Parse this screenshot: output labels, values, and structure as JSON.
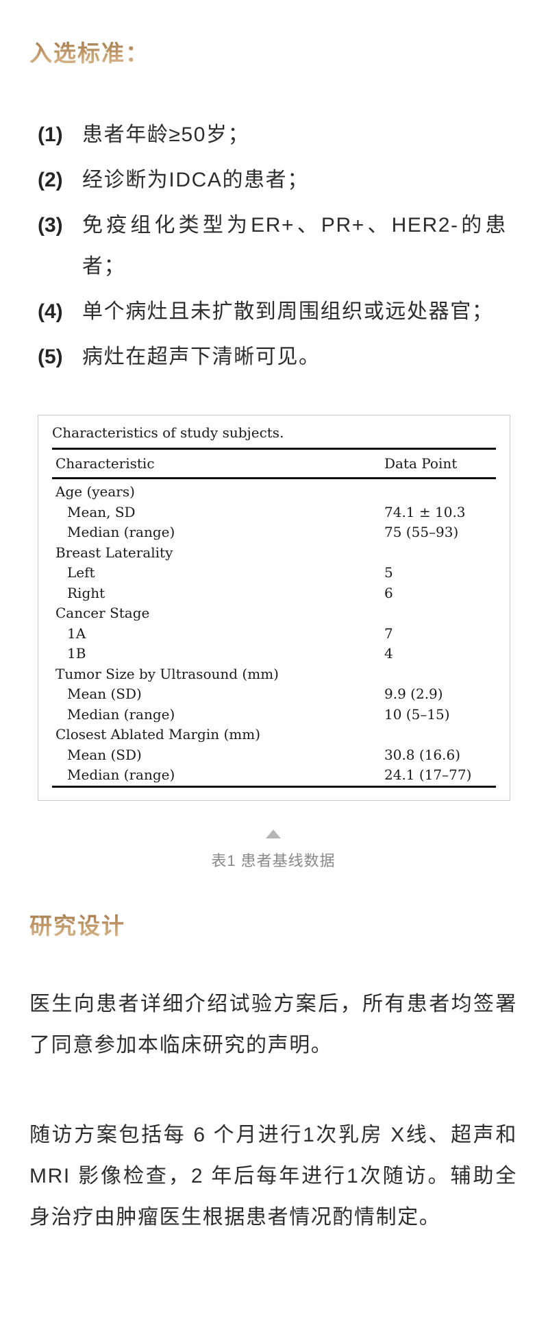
{
  "sections": {
    "inclusion_title": "入选标准：",
    "design_title": "研究设计"
  },
  "criteria": [
    {
      "num": "(1)",
      "text": "患者年龄≥50岁；"
    },
    {
      "num": "(2)",
      "text": "经诊断为IDCA的患者；"
    },
    {
      "num": "(3)",
      "text": "免疫组化类型为ER+、PR+、HER2-的患者；"
    },
    {
      "num": "(4)",
      "text": "单个病灶且未扩散到周围组织或远处器官；"
    },
    {
      "num": "(5)",
      "text": "病灶在超声下清晰可见。"
    }
  ],
  "table": {
    "title": "Characteristics of study subjects.",
    "headers": [
      "Characteristic",
      "Data Point"
    ],
    "rows": [
      {
        "label": "Age (years)",
        "value": "",
        "indent": false
      },
      {
        "label": "Mean, SD",
        "value": "74.1 ± 10.3",
        "indent": true
      },
      {
        "label": "Median (range)",
        "value": "75 (55–93)",
        "indent": true
      },
      {
        "label": "Breast Laterality",
        "value": "",
        "indent": false
      },
      {
        "label": "Left",
        "value": "5",
        "indent": true
      },
      {
        "label": "Right",
        "value": "6",
        "indent": true
      },
      {
        "label": "Cancer Stage",
        "value": "",
        "indent": false
      },
      {
        "label": "1A",
        "value": "7",
        "indent": true
      },
      {
        "label": "1B",
        "value": "4",
        "indent": true
      },
      {
        "label": "Tumor Size by Ultrasound (mm)",
        "value": "",
        "indent": false
      },
      {
        "label": "Mean (SD)",
        "value": "9.9 (2.9)",
        "indent": true
      },
      {
        "label": "Median (range)",
        "value": "10 (5–15)",
        "indent": true
      },
      {
        "label": "Closest Ablated Margin (mm)",
        "value": "",
        "indent": false
      },
      {
        "label": "Mean (SD)",
        "value": "30.8 (16.6)",
        "indent": true
      },
      {
        "label": "Median (range)",
        "value": "24.1 (17–77)",
        "indent": true
      }
    ]
  },
  "figure": {
    "caption": "表1 患者基线数据",
    "collapse_icon": "triangle-up"
  },
  "paragraphs": [
    "医生向患者详细介绍试验方案后，所有患者均签署了同意参加本临床研究的声明。",
    "随访方案包括每 6 个月进行1次乳房 X线、超声和 MRI 影像检查，2 年后每年进行1次随访。辅助全身治疗由肿瘤医生根据患者情况酌情制定。"
  ],
  "colors": {
    "heading_gold_top": "#a27749",
    "heading_gold_bottom": "#dcbf97",
    "caption_gray": "#888888",
    "table_border": "#c9c9c9",
    "rule_black": "#0d0d0d",
    "body_text": "#2d2d2d"
  }
}
